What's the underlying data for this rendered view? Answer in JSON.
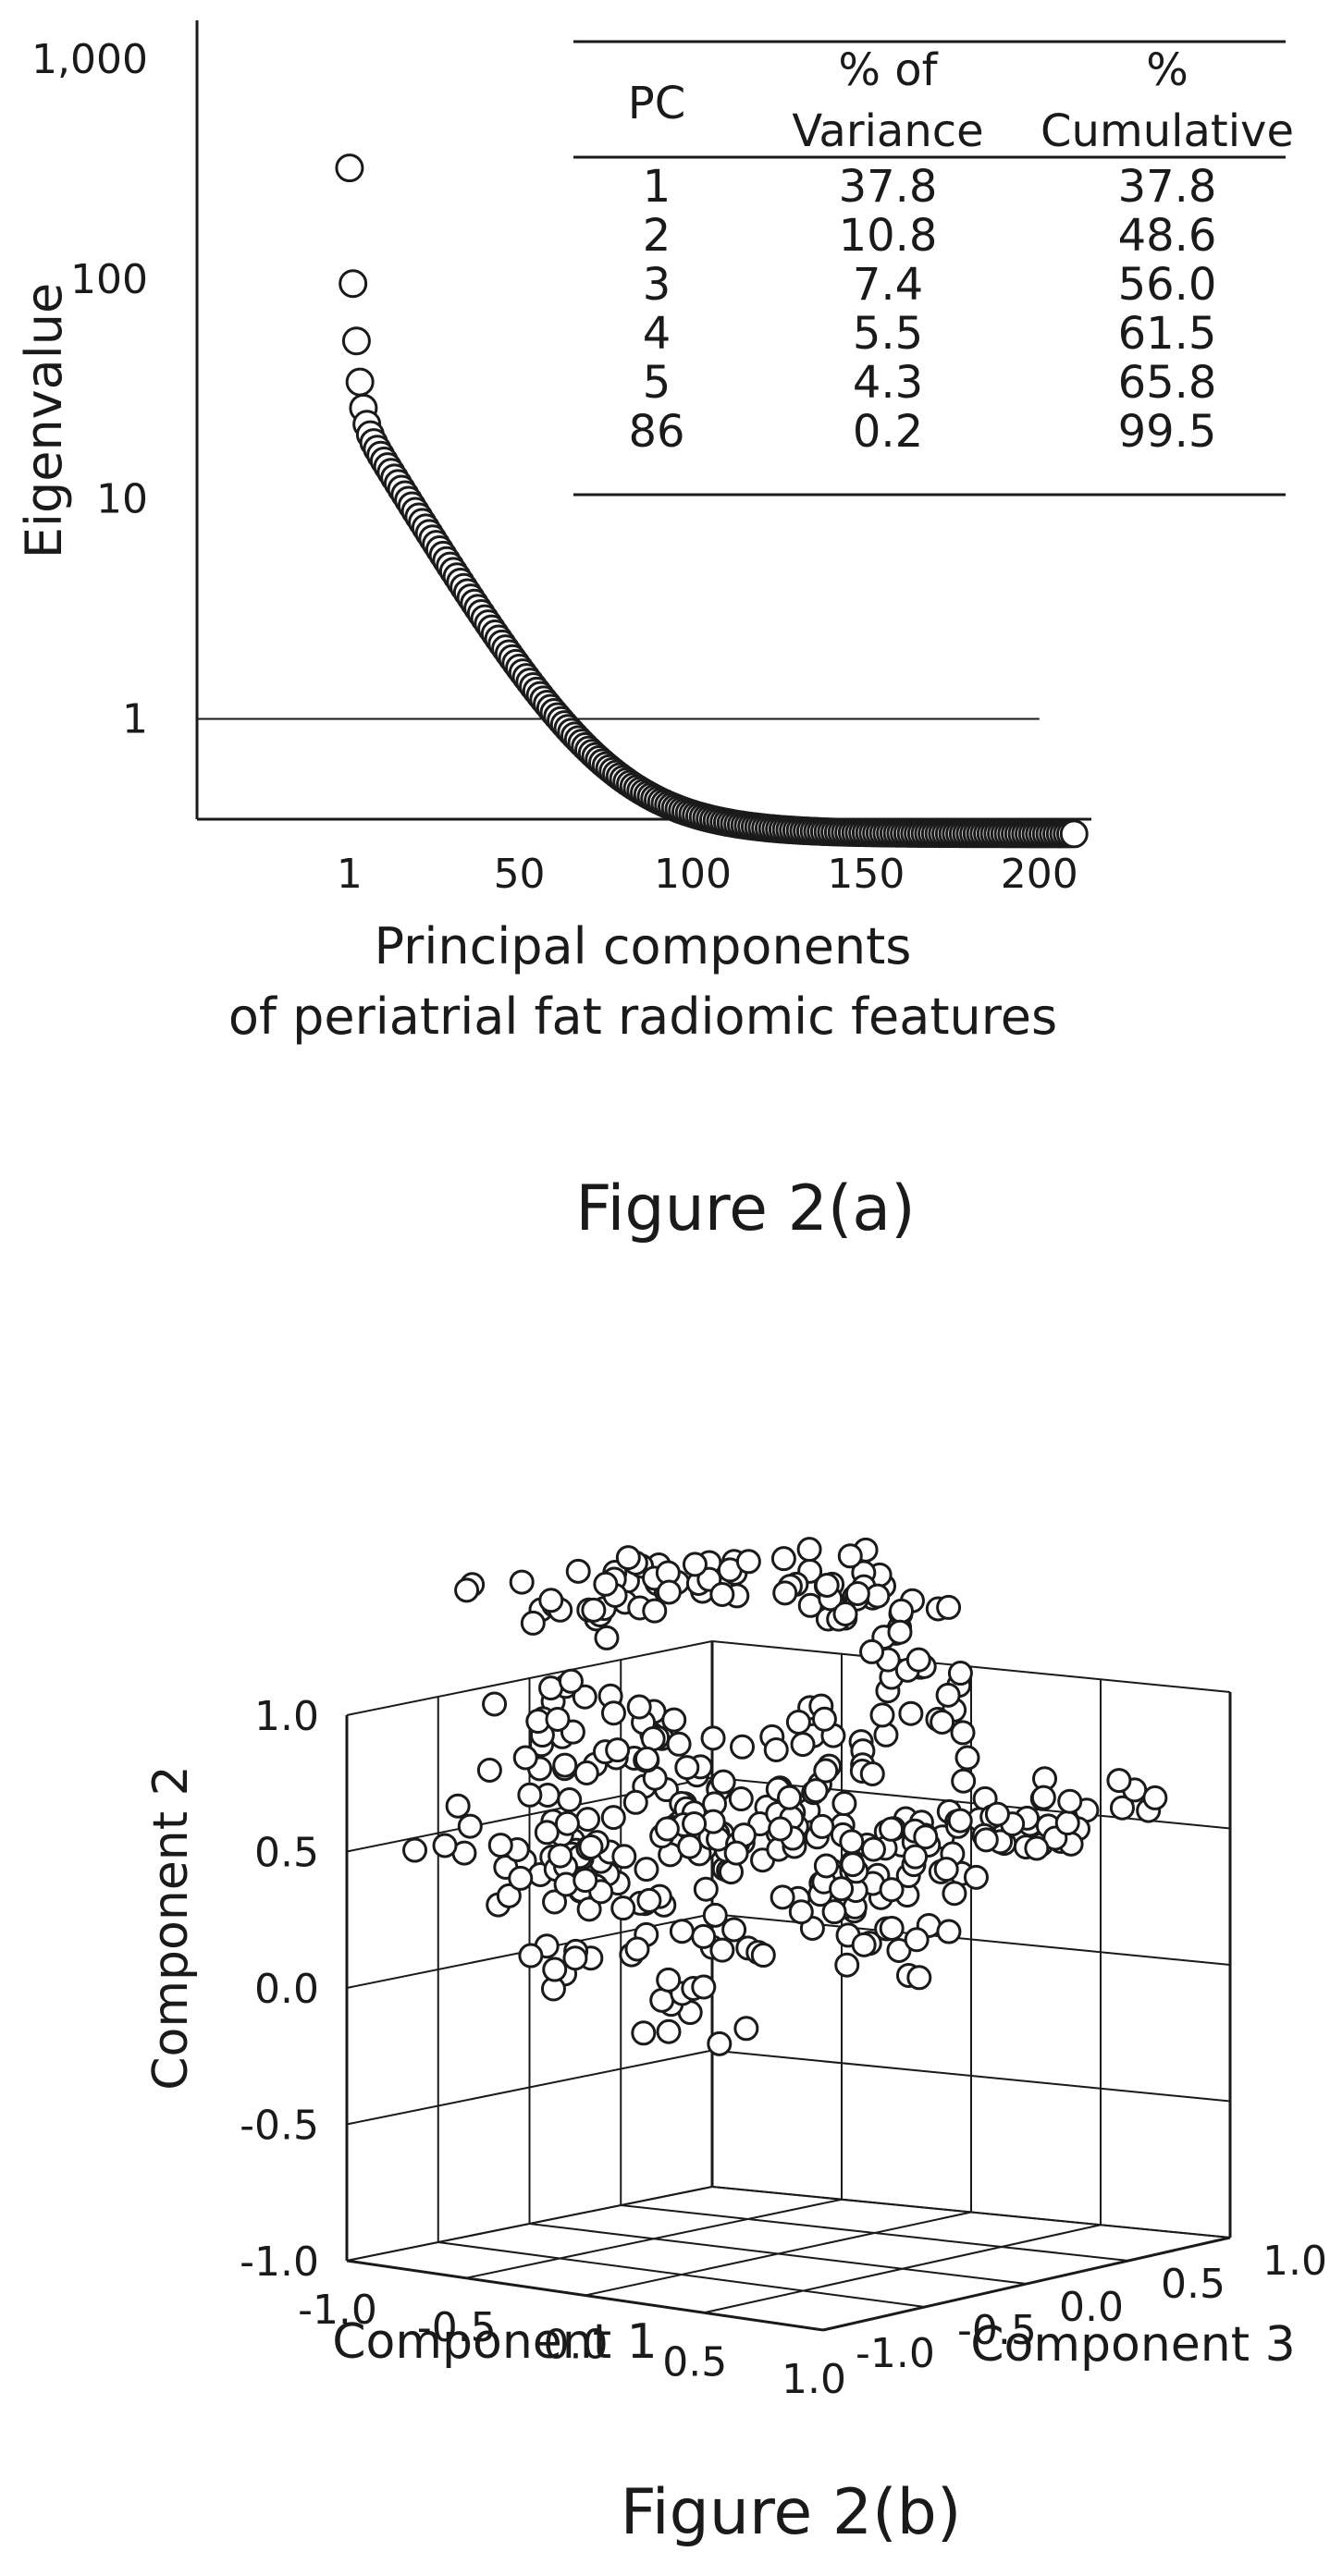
{
  "figure_a": {
    "caption": "Figure 2(a)",
    "chart_data": {
      "type": "scatter",
      "ylabel": "Eigenvalue",
      "xlabel_lines": [
        "Principal components",
        "of periatrial fat radiomic features"
      ],
      "yscale": "log",
      "y_ticks": [
        {
          "value": 1,
          "label": "1"
        },
        {
          "value": 10,
          "label": "10"
        },
        {
          "value": 100,
          "label": "100"
        },
        {
          "value": 1000,
          "label": "1,000"
        }
      ],
      "x_ticks": [
        {
          "value": 1,
          "label": "1"
        },
        {
          "value": 50,
          "label": "50"
        },
        {
          "value": 100,
          "label": "100"
        },
        {
          "value": 150,
          "label": "150"
        },
        {
          "value": 200,
          "label": "200"
        }
      ],
      "xlim": [
        -43,
        215
      ],
      "ylim": [
        0.35,
        1500
      ],
      "reference_line": {
        "y": 1,
        "x_from": -43,
        "x_to": 200
      },
      "eigen_model": {
        "n": 210,
        "first": 320,
        "decay": 0.12,
        "floor": 0.3,
        "a": 25,
        "b": 0.06
      },
      "table": {
        "headers": [
          [
            "PC"
          ],
          [
            "% of",
            "Variance"
          ],
          [
            "%",
            "Cumulative"
          ]
        ],
        "rows": [
          [
            "1",
            "37.8",
            "37.8"
          ],
          [
            "2",
            "10.8",
            "48.6"
          ],
          [
            "3",
            "7.4",
            "56.0"
          ],
          [
            "4",
            "5.5",
            "61.5"
          ],
          [
            "5",
            "4.3",
            "65.8"
          ],
          [
            "86",
            "0.2",
            "99.5"
          ]
        ]
      }
    }
  },
  "figure_b": {
    "caption": "Figure 2(b)",
    "chart_data": {
      "type": "scatter",
      "projection": "3d",
      "xlabel": "Component 1",
      "ylabel": "Component 2",
      "zlabel": "Component 3",
      "x_ticks": [
        "-1.0",
        "-0.5",
        "0.0",
        "0.5",
        "1.0"
      ],
      "y_ticks": [
        "-1.0",
        "-0.5",
        "0.0",
        "0.5",
        "1.0"
      ],
      "z_ticks": [
        "-1.0",
        "-0.5",
        "0.0",
        "0.5",
        "1.0"
      ],
      "xlim": [
        -1,
        1
      ],
      "ylim": [
        -1,
        1
      ],
      "zlim": [
        -1,
        1
      ],
      "grid": true,
      "points": [
        [
          -0.45,
          0.52,
          0.6
        ],
        [
          -0.35,
          0.82,
          0.5
        ],
        [
          -0.25,
          1.0,
          0.3
        ],
        [
          -0.1,
          1.0,
          0.1
        ],
        [
          0.05,
          0.95,
          -0.1
        ],
        [
          0.15,
          0.85,
          -0.2
        ],
        [
          0.2,
          0.7,
          -0.35
        ],
        [
          0.18,
          0.55,
          -0.5
        ],
        [
          -0.5,
          0.85,
          0.6
        ],
        [
          -0.3,
          0.95,
          0.4
        ],
        [
          -0.15,
          0.9,
          0.2
        ],
        [
          0.1,
          0.9,
          -0.15
        ],
        [
          -0.42,
          0.38,
          0.7
        ],
        [
          -0.2,
          0.4,
          0.4
        ],
        [
          0.05,
          0.45,
          -0.1
        ],
        [
          0.22,
          0.4,
          -0.4
        ],
        [
          -0.6,
          0.08,
          0.85
        ],
        [
          -0.4,
          0.05,
          0.6
        ],
        [
          -0.2,
          0.02,
          0.3
        ],
        [
          0.0,
          0.0,
          0.0
        ],
        [
          0.2,
          -0.02,
          -0.3
        ],
        [
          0.4,
          0.0,
          -0.6
        ],
        [
          0.6,
          0.02,
          -0.8
        ],
        [
          -0.5,
          -0.1,
          0.7
        ],
        [
          -0.3,
          -0.15,
          0.45
        ],
        [
          -0.1,
          -0.12,
          0.15
        ],
        [
          0.1,
          -0.15,
          -0.15
        ],
        [
          0.3,
          -0.18,
          -0.45
        ],
        [
          0.5,
          -0.1,
          -0.7
        ],
        [
          -0.45,
          -0.45,
          0.4
        ],
        [
          -0.1,
          -0.35,
          0.1
        ],
        [
          0.15,
          -0.3,
          -0.2
        ],
        [
          -0.2,
          -0.65,
          0.2
        ],
        [
          0.25,
          -0.45,
          -0.3
        ],
        [
          -0.55,
          0.15,
          0.5
        ],
        [
          -0.25,
          0.2,
          0.1
        ],
        [
          0.05,
          0.22,
          -0.2
        ],
        [
          0.35,
          0.15,
          -0.5
        ],
        [
          -0.35,
          0.28,
          0.3
        ],
        [
          0.1,
          0.3,
          -0.3
        ],
        [
          0.3,
          -0.05,
          -0.25
        ],
        [
          -0.15,
          -0.2,
          0.5
        ],
        [
          -0.05,
          0.1,
          0.45
        ],
        [
          0.45,
          0.08,
          -0.3
        ],
        [
          -0.6,
          -0.05,
          0.3
        ],
        [
          -0.5,
          0.25,
          0.2
        ],
        [
          0.0,
          -0.25,
          -0.4
        ],
        [
          0.2,
          0.12,
          0.1
        ],
        [
          -0.3,
          -0.05,
          -0.1
        ],
        [
          0.55,
          -0.05,
          -0.45
        ]
      ]
    }
  }
}
